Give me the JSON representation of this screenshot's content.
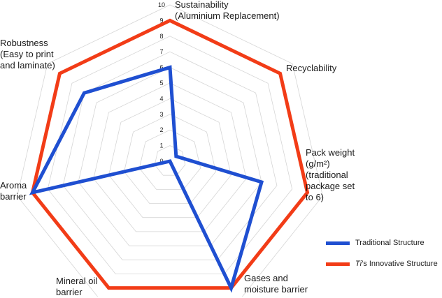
{
  "chart_data": {
    "type": "radar",
    "rmax": 10,
    "ticks": [
      "0",
      "1",
      "2",
      "3",
      "4",
      "5",
      "6",
      "7",
      "8",
      "9",
      "10"
    ],
    "axes": [
      {
        "label": "Sustainability\n(Aluminium Replacement)"
      },
      {
        "label": "Recyclability"
      },
      {
        "label": "Pack weight\n(g/m²)\n(traditional\npackage set\nto 6)"
      },
      {
        "label": "Gases and\nmoisture barrier"
      },
      {
        "label": "Mineral oil\nbarrier"
      },
      {
        "label": "Aroma\nbarrier"
      },
      {
        "label": "Robustness\n(Easy to print\nand laminate)"
      }
    ],
    "series": [
      {
        "name": "Traditional Structure",
        "color": "#1f4fd1",
        "values": [
          6,
          0.5,
          6,
          9,
          0,
          9,
          7
        ]
      },
      {
        "name": "Ti’s Innovative Structure",
        "color": "#f23c17",
        "values": [
          9,
          9,
          9,
          9,
          9,
          9,
          9
        ]
      }
    ],
    "grid": true,
    "legend_position": "bottom-right"
  },
  "legend": {
    "traditional": "Traditional Structure",
    "innovative_prefix": "Ti",
    "innovative_rest": "’s Innovative Structure"
  }
}
